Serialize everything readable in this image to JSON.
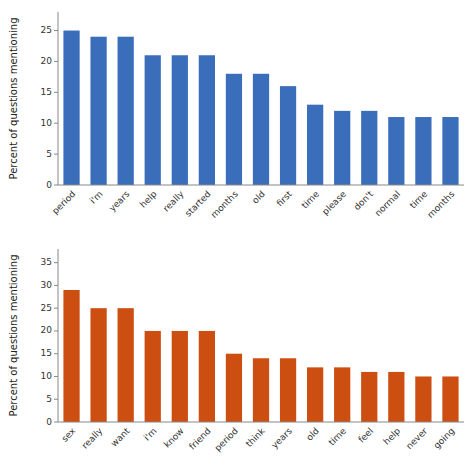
{
  "chart_data": [
    {
      "type": "bar",
      "categories": [
        "period",
        "i'm",
        "years",
        "help",
        "really",
        "started",
        "months",
        "old",
        "first",
        "time",
        "please",
        "don't",
        "normal",
        "time",
        "months"
      ],
      "values": [
        25,
        24,
        24,
        21,
        21,
        21,
        18,
        18,
        16,
        13,
        12,
        12,
        11,
        11,
        11
      ],
      "color": "#3B6EBA",
      "ylabel": "Percent of questions mentioning",
      "ylim": [
        0,
        28
      ],
      "yticks": [
        0,
        5,
        10,
        15,
        20,
        25
      ],
      "grid": false
    },
    {
      "type": "bar",
      "categories": [
        "sex",
        "really",
        "want",
        "i'm",
        "know",
        "friend",
        "period",
        "think",
        "years",
        "old",
        "time",
        "feel",
        "help",
        "never",
        "going"
      ],
      "values": [
        29,
        25,
        25,
        20,
        20,
        20,
        15,
        14,
        14,
        12,
        12,
        11,
        11,
        10,
        10
      ],
      "color": "#CC4E10",
      "ylabel": "Percent of questions mentioning",
      "ylim": [
        0,
        38
      ],
      "yticks": [
        0,
        5,
        10,
        15,
        20,
        25,
        30,
        35
      ],
      "grid": false
    }
  ]
}
